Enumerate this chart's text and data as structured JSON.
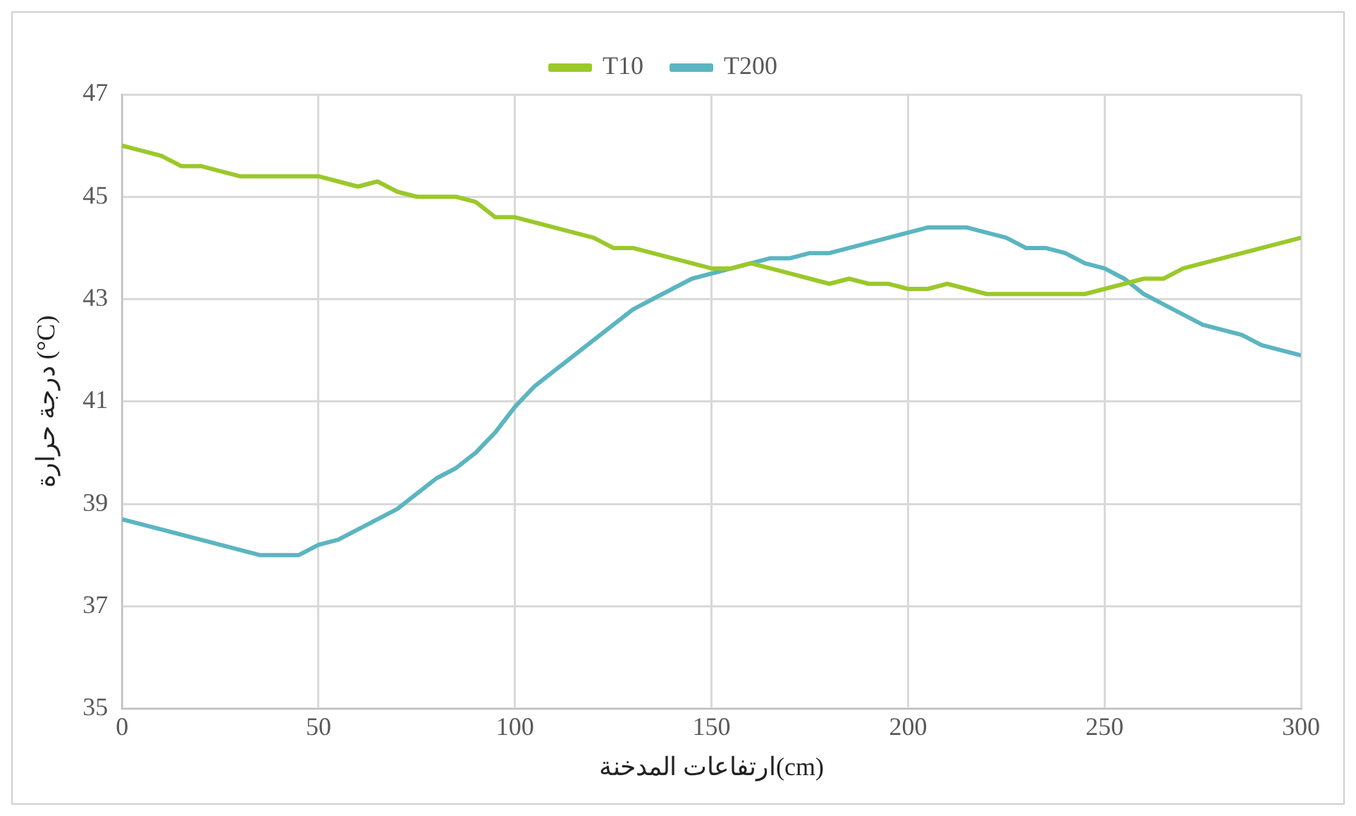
{
  "chart_data": {
    "type": "line",
    "xlabel": "ارتفاعات المدخنة(cm)",
    "ylabel": "درجة حرارة (°C)",
    "x": [
      0,
      5,
      10,
      15,
      20,
      25,
      30,
      35,
      40,
      45,
      50,
      55,
      60,
      65,
      70,
      75,
      80,
      85,
      90,
      95,
      100,
      105,
      110,
      115,
      120,
      125,
      130,
      135,
      140,
      145,
      150,
      155,
      160,
      165,
      170,
      175,
      180,
      185,
      190,
      195,
      200,
      205,
      210,
      215,
      220,
      225,
      230,
      235,
      240,
      245,
      250,
      255,
      260,
      265,
      270,
      275,
      280,
      285,
      290,
      295,
      300
    ],
    "series": [
      {
        "name": "T10",
        "color": "#9bc82a",
        "values": [
          46.0,
          45.9,
          45.8,
          45.6,
          45.6,
          45.5,
          45.4,
          45.4,
          45.4,
          45.4,
          45.4,
          45.3,
          45.2,
          45.3,
          45.1,
          45.0,
          45.0,
          45.0,
          44.9,
          44.6,
          44.6,
          44.5,
          44.4,
          44.3,
          44.2,
          44.0,
          44.0,
          43.9,
          43.8,
          43.7,
          43.6,
          43.6,
          43.7,
          43.6,
          43.5,
          43.4,
          43.3,
          43.4,
          43.3,
          43.3,
          43.2,
          43.2,
          43.3,
          43.2,
          43.1,
          43.1,
          43.1,
          43.1,
          43.1,
          43.1,
          43.2,
          43.3,
          43.4,
          43.4,
          43.6,
          43.7,
          43.8,
          43.9,
          44.0,
          44.1,
          44.2
        ]
      },
      {
        "name": "T200",
        "color": "#5bb5c0",
        "values": [
          38.7,
          38.6,
          38.5,
          38.4,
          38.3,
          38.2,
          38.1,
          38.0,
          38.0,
          38.0,
          38.2,
          38.3,
          38.5,
          38.7,
          38.9,
          39.2,
          39.5,
          39.7,
          40.0,
          40.4,
          40.9,
          41.3,
          41.6,
          41.9,
          42.2,
          42.5,
          42.8,
          43.0,
          43.2,
          43.4,
          43.5,
          43.6,
          43.7,
          43.8,
          43.8,
          43.9,
          43.9,
          44.0,
          44.1,
          44.2,
          44.3,
          44.4,
          44.4,
          44.4,
          44.3,
          44.2,
          44.0,
          44.0,
          43.9,
          43.7,
          43.6,
          43.4,
          43.1,
          42.9,
          42.7,
          42.5,
          42.4,
          42.3,
          42.1,
          42.0,
          41.9
        ]
      }
    ],
    "xlim": [
      0,
      300
    ],
    "xticks": [
      0,
      50,
      100,
      150,
      200,
      250,
      300
    ],
    "ylim": [
      35,
      47
    ],
    "yticks": [
      35,
      37,
      39,
      41,
      43,
      45,
      47
    ],
    "grid": true,
    "legend": "top",
    "marker": "none",
    "line_style": "solid"
  }
}
